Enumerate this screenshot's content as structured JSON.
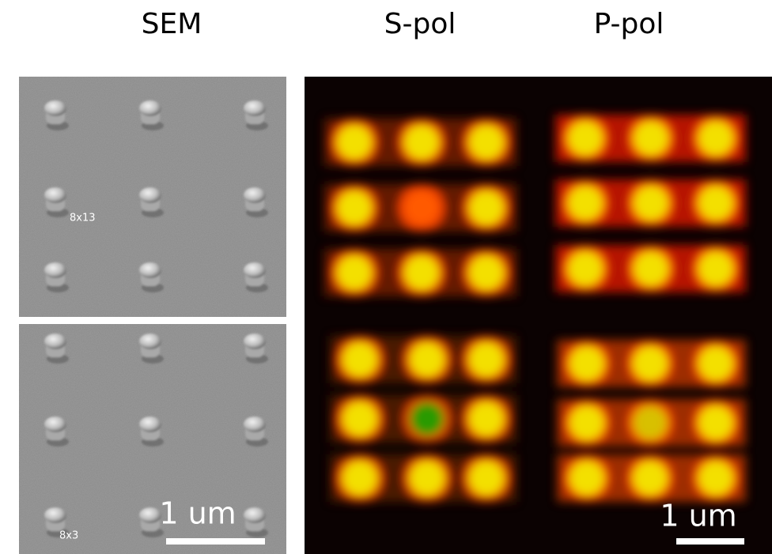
{
  "titles": {
    "sem": "SEM",
    "s_pol": "S-pol",
    "p_pol": "P-pol"
  },
  "sem_panels": [
    {
      "label": "8x13"
    },
    {
      "label": "8x3"
    }
  ],
  "scale_bars": [
    "1 um",
    "1 um"
  ]
}
